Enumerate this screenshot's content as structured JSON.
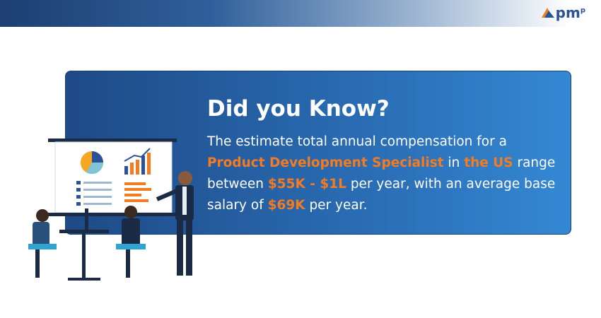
{
  "logo": {
    "text": "pm",
    "sup": "p"
  },
  "card": {
    "heading": "Did you Know?",
    "body": [
      {
        "text": "The estimate total annual compensation for a ",
        "highlight": false
      },
      {
        "text": "Product Development Specialist",
        "highlight": true
      },
      {
        "text": " in ",
        "highlight": false
      },
      {
        "text": "the US",
        "highlight": true
      },
      {
        "text": " range between ",
        "highlight": false
      },
      {
        "text": "$55K - $1L",
        "highlight": true
      },
      {
        "text": " per year, with an average base salary of ",
        "highlight": false
      },
      {
        "text": "$69K",
        "highlight": true
      },
      {
        "text": " per year.",
        "highlight": false
      }
    ]
  }
}
